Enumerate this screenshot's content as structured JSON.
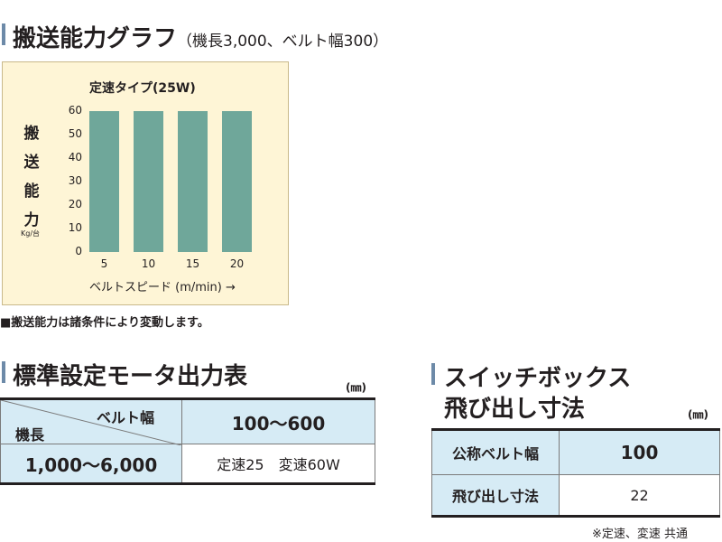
{
  "capacity": {
    "title": "搬送能力グラフ",
    "title_sub": "（機長3,000、ベルト幅300）",
    "note": "■搬送能力は諸条件により変動します。"
  },
  "chart_data": {
    "type": "bar",
    "title": "定速タイプ(25W)",
    "ylabel_chars": [
      "搬",
      "送",
      "能",
      "力"
    ],
    "ylabel_unit": "Kg/台",
    "xlabel": "ベルトスピード (m/min) →",
    "categories": [
      "5",
      "10",
      "15",
      "20"
    ],
    "values": [
      60,
      60,
      60,
      60
    ],
    "yticks": [
      "60",
      "50",
      "40",
      "30",
      "20",
      "10",
      "0"
    ],
    "ylim": [
      0,
      60
    ],
    "grid": false,
    "bar_color": "#6fa79a",
    "background": "#fef5d6"
  },
  "motor": {
    "title": "標準設定モータ出力表",
    "unit": "(㎜)",
    "header_row_label": "機長",
    "header_col_label": "ベルト幅",
    "header_value": "100～600",
    "row_label": "1,000～6,000",
    "row_value": "定速25　変速60W"
  },
  "switchbox": {
    "title_line1": "スイッチボックス",
    "title_line2": "飛び出し寸法",
    "unit": "(㎜)",
    "rows": [
      {
        "label": "公称ベルト幅",
        "value": "100"
      },
      {
        "label": "飛び出し寸法",
        "value": "22"
      }
    ],
    "footnote": "※定速、変速 共通"
  },
  "colors": {
    "accent_bar": "#6d8aa8",
    "table_header": "#d6ebf5"
  }
}
